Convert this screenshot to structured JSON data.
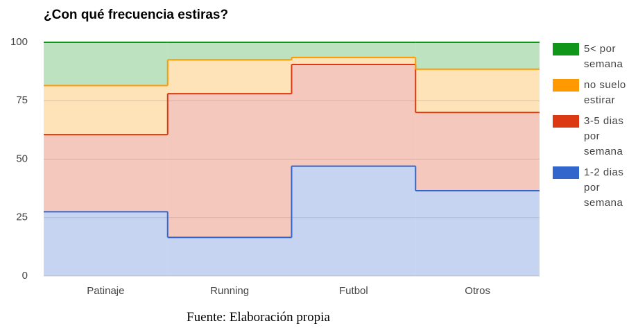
{
  "chart_data": {
    "type": "stepped-area",
    "title": "¿Con qué frecuencia estiras?",
    "categories": [
      "Patinaje",
      "Running",
      "Futbol",
      "Otros"
    ],
    "series": [
      {
        "name": "5< por semana",
        "color": "#109618",
        "values": [
          18.5,
          7.5,
          6.5,
          11.5
        ]
      },
      {
        "name": "no suelo estirar",
        "color": "#ff9900",
        "values": [
          21,
          14.5,
          3,
          18.5
        ]
      },
      {
        "name": "3-5 dias por semana",
        "color": "#dc3912",
        "values": [
          33,
          61.5,
          43.5,
          33.5
        ]
      },
      {
        "name": "1-2 dias por semana",
        "color": "#3366cc",
        "values": [
          27.5,
          16.5,
          47,
          36.5
        ]
      }
    ],
    "stacked": true,
    "ylim": [
      0,
      100
    ],
    "yticks": [
      0,
      25,
      50,
      75,
      100
    ],
    "grid": true,
    "legend": "right"
  },
  "caption": "Fuente: Elaboración propia"
}
